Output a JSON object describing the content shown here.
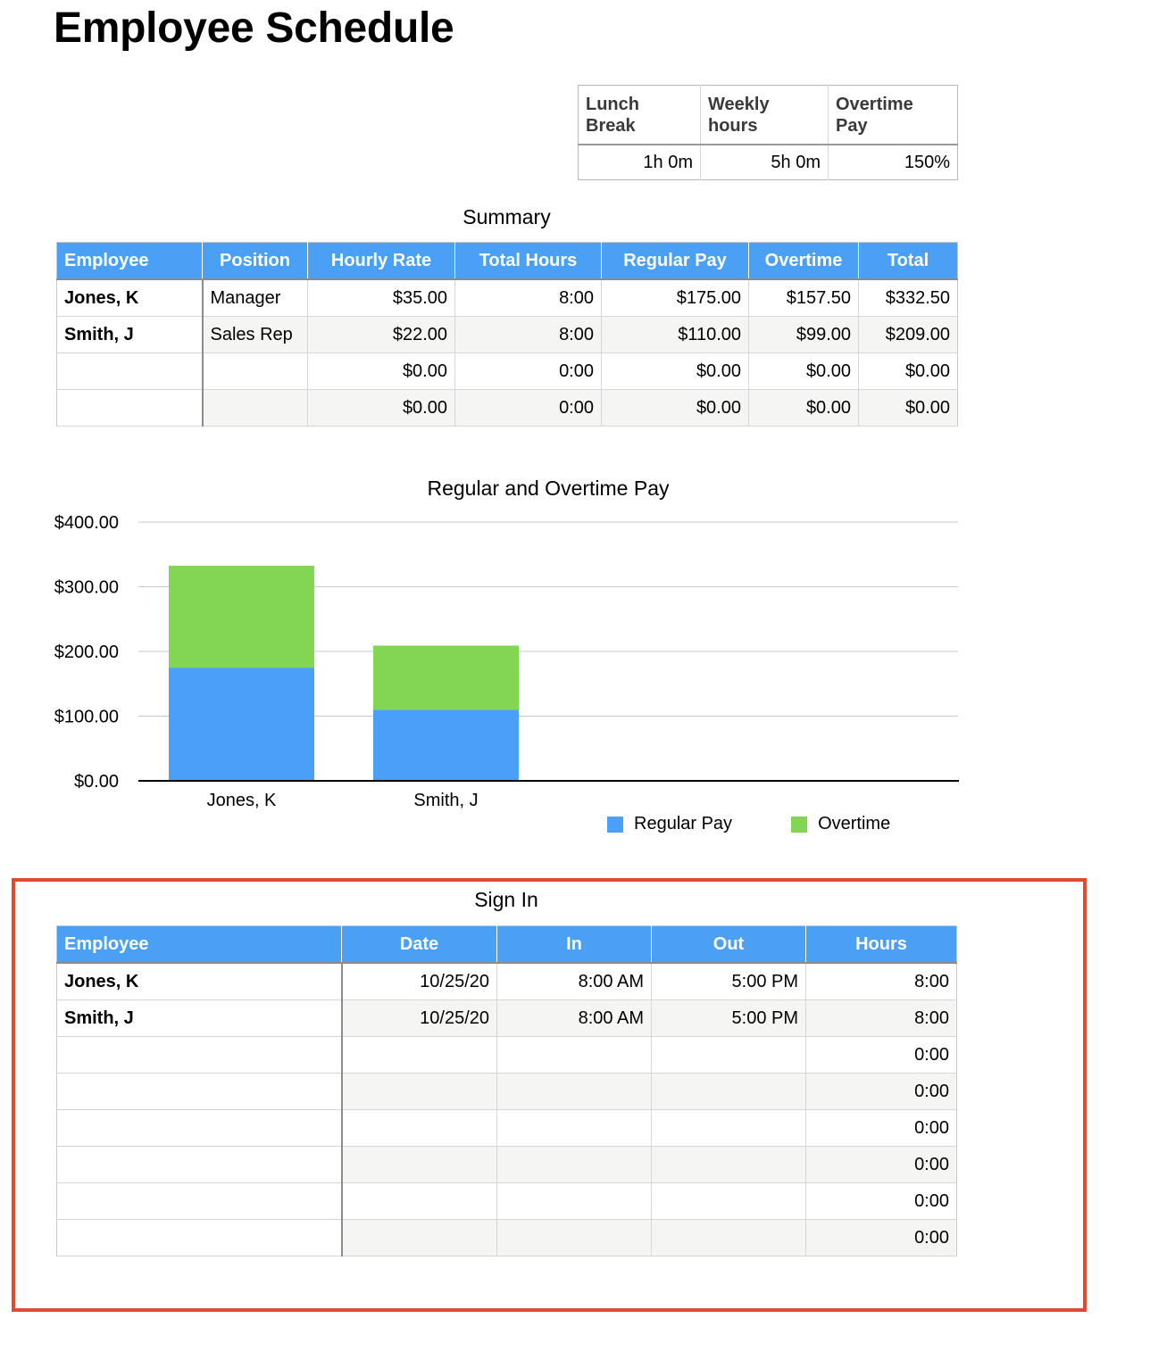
{
  "title": "Employee Schedule",
  "settings": {
    "headers": [
      [
        "Lunch",
        "Break"
      ],
      [
        "Weekly",
        "hours"
      ],
      [
        "Overtime",
        "Pay"
      ]
    ],
    "values": [
      "1h 0m",
      "5h 0m",
      "150%"
    ]
  },
  "summary": {
    "caption": "Summary",
    "headers": [
      "Employee",
      "Position",
      "Hourly Rate",
      "Total Hours",
      "Regular Pay",
      "Overtime",
      "Total"
    ],
    "rows": [
      [
        "Jones, K",
        "Manager",
        "$35.00",
        "8:00",
        "$175.00",
        "$157.50",
        "$332.50"
      ],
      [
        "Smith, J",
        "Sales Rep",
        "$22.00",
        "8:00",
        "$110.00",
        "$99.00",
        "$209.00"
      ],
      [
        "",
        "",
        "$0.00",
        "0:00",
        "$0.00",
        "$0.00",
        "$0.00"
      ],
      [
        "",
        "",
        "$0.00",
        "0:00",
        "$0.00",
        "$0.00",
        "$0.00"
      ]
    ]
  },
  "chart_data": {
    "type": "bar",
    "stacked": true,
    "title": "Regular and Overtime Pay",
    "categories": [
      "Jones, K",
      "Smith, J"
    ],
    "series": [
      {
        "name": "Regular Pay",
        "values": [
          175,
          110
        ],
        "color": "#4a9ff6"
      },
      {
        "name": "Overtime",
        "values": [
          157.5,
          99
        ],
        "color": "#82d654"
      }
    ],
    "yticks": [
      "$0.00",
      "$100.00",
      "$200.00",
      "$300.00",
      "$400.00"
    ],
    "ylim": [
      0,
      400
    ],
    "xlabel": "",
    "ylabel": "",
    "grid": true,
    "legend_position": "bottom-right"
  },
  "signin": {
    "caption": "Sign In",
    "headers": [
      "Employee",
      "Date",
      "In",
      "Out",
      "Hours"
    ],
    "rows": [
      [
        "Jones, K",
        "10/25/20",
        "8:00 AM",
        "5:00 PM",
        "8:00"
      ],
      [
        "Smith, J",
        "10/25/20",
        "8:00 AM",
        "5:00 PM",
        "8:00"
      ],
      [
        "",
        "",
        "",
        "",
        "0:00"
      ],
      [
        "",
        "",
        "",
        "",
        "0:00"
      ],
      [
        "",
        "",
        "",
        "",
        "0:00"
      ],
      [
        "",
        "",
        "",
        "",
        "0:00"
      ],
      [
        "",
        "",
        "",
        "",
        "0:00"
      ],
      [
        "",
        "",
        "",
        "",
        "0:00"
      ]
    ]
  },
  "colors": {
    "header_blue": "#4aa0f5",
    "highlight_red": "#e04a35"
  }
}
